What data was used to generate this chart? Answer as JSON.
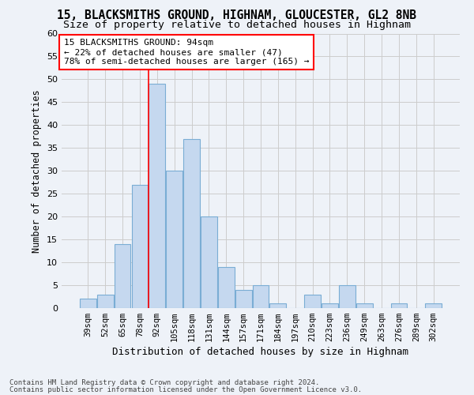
{
  "title": "15, BLACKSMITHS GROUND, HIGHNAM, GLOUCESTER, GL2 8NB",
  "subtitle": "Size of property relative to detached houses in Highnam",
  "xlabel": "Distribution of detached houses by size in Highnam",
  "ylabel": "Number of detached properties",
  "categories": [
    "39sqm",
    "52sqm",
    "65sqm",
    "78sqm",
    "92sqm",
    "105sqm",
    "118sqm",
    "131sqm",
    "144sqm",
    "157sqm",
    "171sqm",
    "184sqm",
    "197sqm",
    "210sqm",
    "223sqm",
    "236sqm",
    "249sqm",
    "263sqm",
    "276sqm",
    "289sqm",
    "302sqm"
  ],
  "values": [
    2,
    3,
    14,
    27,
    49,
    30,
    37,
    20,
    9,
    4,
    5,
    1,
    0,
    3,
    1,
    5,
    1,
    0,
    1,
    0,
    1
  ],
  "bar_color": "#c5d8ef",
  "bar_edge_color": "#7aadd4",
  "red_line_x": 3.5,
  "annotation_text": "15 BLACKSMITHS GROUND: 94sqm\n← 22% of detached houses are smaller (47)\n78% of semi-detached houses are larger (165) →",
  "annotation_box_color": "white",
  "annotation_box_edge_color": "red",
  "ylim": [
    0,
    60
  ],
  "yticks": [
    0,
    5,
    10,
    15,
    20,
    25,
    30,
    35,
    40,
    45,
    50,
    55,
    60
  ],
  "footer1": "Contains HM Land Registry data © Crown copyright and database right 2024.",
  "footer2": "Contains public sector information licensed under the Open Government Licence v3.0.",
  "background_color": "#eef2f8",
  "grid_color": "#cccccc",
  "title_fontsize": 10.5,
  "subtitle_fontsize": 9.5,
  "xlabel_fontsize": 9,
  "ylabel_fontsize": 8.5,
  "tick_fontsize": 8,
  "xtick_fontsize": 7.5,
  "annotation_fontsize": 8,
  "footer_fontsize": 6.5
}
